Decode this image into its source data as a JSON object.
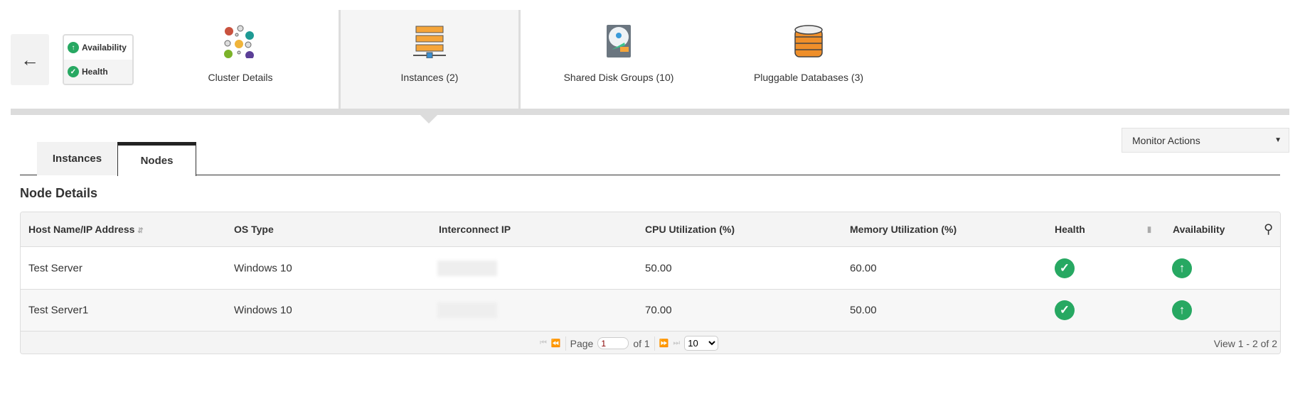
{
  "header": {
    "back_icon": "arrow-left-icon",
    "status": [
      {
        "label": "Availability",
        "icon": "arrow-up-circle-icon"
      },
      {
        "label": "Health",
        "icon": "check-circle-icon"
      }
    ],
    "tiles": [
      {
        "label": "Cluster Details",
        "icon": "cluster-dots-icon"
      },
      {
        "label": "Instances (2)",
        "icon": "server-stack-icon",
        "active": true
      },
      {
        "label": "Shared Disk Groups (10)",
        "icon": "hard-disk-icon"
      },
      {
        "label": "Pluggable Databases (3)",
        "icon": "database-icon"
      }
    ]
  },
  "monitor_actions": {
    "label": "Monitor Actions"
  },
  "tabs": [
    {
      "label": "Instances"
    },
    {
      "label": "Nodes",
      "active": true
    }
  ],
  "section_title": "Node Details",
  "table": {
    "columns": [
      "Host Name/IP Address",
      "OS Type",
      "Interconnect IP",
      "CPU Utilization (%)",
      "Memory Utilization (%)",
      "Health",
      "Availability"
    ],
    "rows": [
      {
        "host": "Test Server",
        "os": "Windows 10",
        "ip": "",
        "cpu": "50.00",
        "mem": "60.00",
        "health": "ok",
        "availability": "up"
      },
      {
        "host": "Test Server1",
        "os": "Windows 10",
        "ip": "",
        "cpu": "70.00",
        "mem": "50.00",
        "health": "ok",
        "availability": "up"
      }
    ],
    "pager": {
      "page_label": "Page",
      "page": "1",
      "of_label": "of 1",
      "page_size": "10",
      "view": "View 1 - 2 of 2"
    }
  },
  "colors": {
    "ok": "#27a862",
    "accent_bar": "#dcdcdc"
  }
}
